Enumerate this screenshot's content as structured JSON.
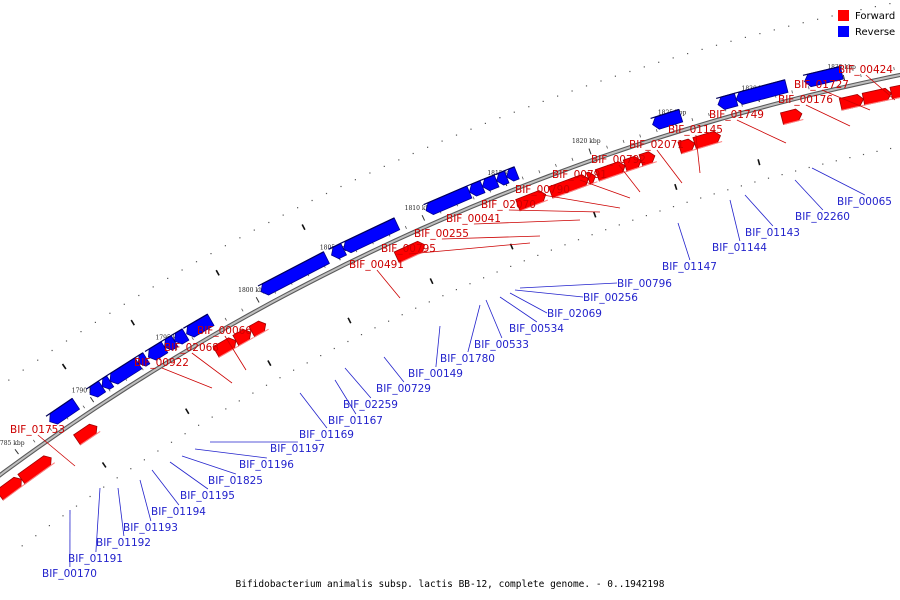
{
  "caption": "Bifidobacterium animalis subsp. lactis BB-12, complete genome. - 0..1942198",
  "legend": {
    "items": [
      {
        "label": "Forward",
        "color": "#ff0000"
      },
      {
        "label": "Reverse",
        "color": "#0000ff"
      }
    ]
  },
  "colors": {
    "forward": "#ff0000",
    "reverse": "#0000ff",
    "forward_label": "#cc0000",
    "reverse_label": "#2222cc",
    "backbone": "#888888"
  },
  "ticks": [
    "1785 kbp",
    "1790 kbp",
    "1795 kbp",
    "1800 kbp",
    "1805 kbp",
    "1810 kbp",
    "1815 kbp",
    "1820 kbp",
    "1825 kbp",
    "1830 kbp",
    "1835 kbp"
  ],
  "genes": {
    "forward": [
      "BIF_01753",
      "BIF_00922",
      "BIF_02068",
      "BIF_00066",
      "BIF_00491",
      "BIF_00795",
      "BIF_00255",
      "BIF_00041",
      "BIF_02070",
      "BIF_00790",
      "BIF_00791",
      "BIF_00792",
      "BIF_02071",
      "BIF_01145",
      "BIF_01749",
      "BIF_00176",
      "BIF_01727",
      "BIF_00424"
    ],
    "reverse": [
      "BIF_00170",
      "BIF_01191",
      "BIF_01192",
      "BIF_01193",
      "BIF_01194",
      "BIF_01195",
      "BIF_01825",
      "BIF_01196",
      "BIF_01197",
      "BIF_01169",
      "BIF_01167",
      "BIF_02259",
      "BIF_00729",
      "BIF_00149",
      "BIF_01780",
      "BIF_00533",
      "BIF_00534",
      "BIF_02069",
      "BIF_00256",
      "BIF_00796",
      "BIF_01147",
      "BIF_01144",
      "BIF_01143",
      "BIF_02260",
      "BIF_00065"
    ]
  }
}
